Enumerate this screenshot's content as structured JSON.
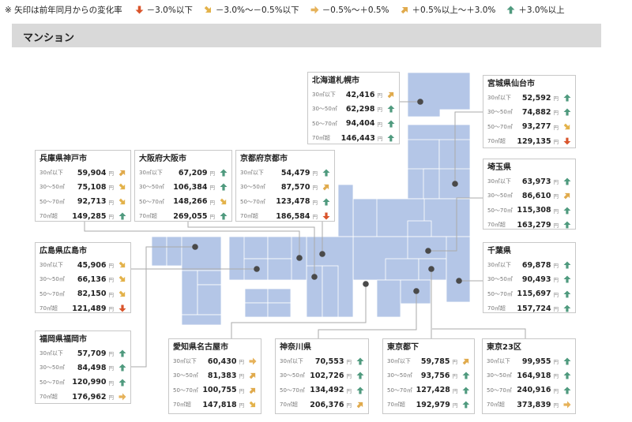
{
  "legend": {
    "note": "※ 矢印は前年同月からの変化率",
    "items": [
      {
        "trend": "down",
        "label": "－3.0%以下"
      },
      {
        "trend": "down-right",
        "label": "－3.0%～－0.5%以下"
      },
      {
        "trend": "right",
        "label": "－0.5%～＋0.5%"
      },
      {
        "trend": "up-right",
        "label": "＋0.5%以上～＋3.0%"
      },
      {
        "trend": "up",
        "label": "＋3.0%以上"
      }
    ]
  },
  "trend_colors": {
    "down": "#d9542b",
    "down-right": "#e3b24a",
    "right": "#e6b25a",
    "up-right": "#e0aa4c",
    "up": "#4f9a7e"
  },
  "section_title": "マンション",
  "unit": "円",
  "map_color": "#b4c6e7",
  "regions": [
    {
      "id": "sapporo",
      "name": "北海道札幌市",
      "rows": [
        {
          "band": "30㎡以下",
          "price": "42,416",
          "trend": "up-right"
        },
        {
          "band": "30～50㎡",
          "price": "62,298",
          "trend": "up"
        },
        {
          "band": "50～70㎡",
          "price": "94,404",
          "trend": "up"
        },
        {
          "band": "70㎡超",
          "price": "146,443",
          "trend": "up"
        }
      ]
    },
    {
      "id": "sendai",
      "name": "宮城県仙台市",
      "rows": [
        {
          "band": "30㎡以下",
          "price": "52,592",
          "trend": "up"
        },
        {
          "band": "30～50㎡",
          "price": "74,882",
          "trend": "up"
        },
        {
          "band": "50～70㎡",
          "price": "93,277",
          "trend": "down-right"
        },
        {
          "band": "70㎡超",
          "price": "129,135",
          "trend": "down"
        }
      ]
    },
    {
      "id": "saitama",
      "name": "埼玉県",
      "rows": [
        {
          "band": "30㎡以下",
          "price": "63,973",
          "trend": "up"
        },
        {
          "band": "30～50㎡",
          "price": "86,610",
          "trend": "up-right"
        },
        {
          "band": "50～70㎡",
          "price": "115,308",
          "trend": "up"
        },
        {
          "band": "70㎡超",
          "price": "163,279",
          "trend": "up"
        }
      ]
    },
    {
      "id": "chiba",
      "name": "千葉県",
      "rows": [
        {
          "band": "30㎡以下",
          "price": "69,878",
          "trend": "up"
        },
        {
          "band": "30～50㎡",
          "price": "90,493",
          "trend": "up"
        },
        {
          "band": "50～70㎡",
          "price": "115,697",
          "trend": "up"
        },
        {
          "band": "70㎡超",
          "price": "157,724",
          "trend": "up"
        }
      ]
    },
    {
      "id": "kobe",
      "name": "兵庫県神戸市",
      "rows": [
        {
          "band": "30㎡以下",
          "price": "59,904",
          "trend": "up-right"
        },
        {
          "band": "30～50㎡",
          "price": "75,108",
          "trend": "down-right"
        },
        {
          "band": "50～70㎡",
          "price": "92,713",
          "trend": "down-right"
        },
        {
          "band": "70㎡超",
          "price": "149,285",
          "trend": "up"
        }
      ]
    },
    {
      "id": "osaka",
      "name": "大阪府大阪市",
      "rows": [
        {
          "band": "30㎡以下",
          "price": "67,209",
          "trend": "up"
        },
        {
          "band": "30～50㎡",
          "price": "106,384",
          "trend": "up"
        },
        {
          "band": "50～70㎡",
          "price": "148,266",
          "trend": "down-right"
        },
        {
          "band": "70㎡超",
          "price": "269,055",
          "trend": "up"
        }
      ]
    },
    {
      "id": "kyoto",
      "name": "京都府京都市",
      "rows": [
        {
          "band": "30㎡以下",
          "price": "54,479",
          "trend": "up"
        },
        {
          "band": "30～50㎡",
          "price": "87,570",
          "trend": "up-right"
        },
        {
          "band": "50～70㎡",
          "price": "123,478",
          "trend": "up"
        },
        {
          "band": "70㎡超",
          "price": "186,584",
          "trend": "down"
        }
      ]
    },
    {
      "id": "hiroshima",
      "name": "広島県広島市",
      "rows": [
        {
          "band": "30㎡以下",
          "price": "45,906",
          "trend": "down-right"
        },
        {
          "band": "30～50㎡",
          "price": "66,136",
          "trend": "down-right"
        },
        {
          "band": "50～70㎡",
          "price": "82,150",
          "trend": "down-right"
        },
        {
          "band": "70㎡超",
          "price": "121,489",
          "trend": "down"
        }
      ]
    },
    {
      "id": "fukuoka",
      "name": "福岡県福岡市",
      "rows": [
        {
          "band": "30㎡以下",
          "price": "57,709",
          "trend": "up"
        },
        {
          "band": "30～50㎡",
          "price": "84,498",
          "trend": "up"
        },
        {
          "band": "50～70㎡",
          "price": "120,990",
          "trend": "up"
        },
        {
          "band": "70㎡超",
          "price": "176,962",
          "trend": "right"
        }
      ]
    },
    {
      "id": "nagoya",
      "name": "愛知県名古屋市",
      "rows": [
        {
          "band": "30㎡以下",
          "price": "60,430",
          "trend": "right"
        },
        {
          "band": "30～50㎡",
          "price": "81,383",
          "trend": "up-right"
        },
        {
          "band": "50～70㎡",
          "price": "100,755",
          "trend": "up-right"
        },
        {
          "band": "70㎡超",
          "price": "147,818",
          "trend": "down-right"
        }
      ]
    },
    {
      "id": "kanagawa",
      "name": "神奈川県",
      "rows": [
        {
          "band": "30㎡以下",
          "price": "70,553",
          "trend": "up"
        },
        {
          "band": "30～50㎡",
          "price": "102,726",
          "trend": "up"
        },
        {
          "band": "50～70㎡",
          "price": "134,492",
          "trend": "up"
        },
        {
          "band": "70㎡超",
          "price": "206,376",
          "trend": "up-right"
        }
      ]
    },
    {
      "id": "tokyo-tokashita",
      "name": "東京都下",
      "rows": [
        {
          "band": "30㎡以下",
          "price": "59,785",
          "trend": "up-right"
        },
        {
          "band": "30～50㎡",
          "price": "93,756",
          "trend": "up"
        },
        {
          "band": "50～70㎡",
          "price": "127,428",
          "trend": "up"
        },
        {
          "band": "70㎡超",
          "price": "192,979",
          "trend": "up"
        }
      ]
    },
    {
      "id": "tokyo23",
      "name": "東京23区",
      "rows": [
        {
          "band": "30㎡以下",
          "price": "99,955",
          "trend": "up"
        },
        {
          "band": "30～50㎡",
          "price": "164,918",
          "trend": "up"
        },
        {
          "band": "50～70㎡",
          "price": "240,916",
          "trend": "up"
        },
        {
          "band": "70㎡超",
          "price": "373,839",
          "trend": "right"
        }
      ]
    }
  ]
}
